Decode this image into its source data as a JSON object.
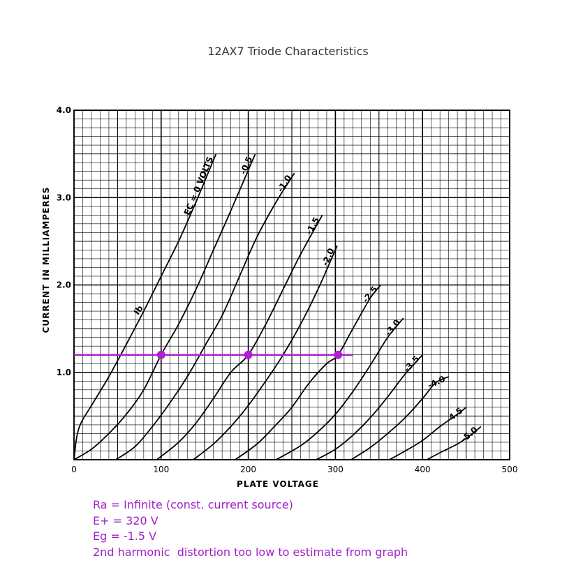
{
  "title": "12AX7 Triode Characteristics",
  "chart_data": {
    "type": "line",
    "title": "12AX7 Triode Characteristics",
    "xlabel": "PLATE VOLTAGE",
    "ylabel": "CURRENT IN MILLIAMPERES",
    "xlim": [
      0,
      500
    ],
    "ylim": [
      0,
      4.0
    ],
    "x_ticks": [
      "0",
      "100",
      "200",
      "300",
      "400",
      "500"
    ],
    "y_ticks": [
      "1.0",
      "2.0",
      "3.0",
      "4.0"
    ],
    "grid": true,
    "curve_axis_label": "Ib",
    "series": [
      {
        "name": "EC = 0 VOLTS",
        "label": "EC = 0 VOLTS",
        "points": [
          [
            0,
            0
          ],
          [
            3,
            0.25
          ],
          [
            8,
            0.42
          ],
          [
            20,
            0.62
          ],
          [
            40,
            0.95
          ],
          [
            60,
            1.32
          ],
          [
            80,
            1.7
          ],
          [
            100,
            2.1
          ],
          [
            120,
            2.5
          ],
          [
            140,
            2.95
          ],
          [
            163,
            3.5
          ]
        ]
      },
      {
        "name": "-0.5",
        "label": "-0.5",
        "points": [
          [
            0,
            0
          ],
          [
            20,
            0.12
          ],
          [
            40,
            0.3
          ],
          [
            60,
            0.52
          ],
          [
            80,
            0.8
          ],
          [
            100,
            1.2
          ],
          [
            120,
            1.55
          ],
          [
            140,
            1.95
          ],
          [
            160,
            2.4
          ],
          [
            180,
            2.85
          ],
          [
            208,
            3.5
          ]
        ]
      },
      {
        "name": "-1.0",
        "label": "-1.0",
        "points": [
          [
            48,
            0
          ],
          [
            70,
            0.15
          ],
          [
            90,
            0.38
          ],
          [
            110,
            0.65
          ],
          [
            130,
            0.95
          ],
          [
            150,
            1.3
          ],
          [
            170,
            1.65
          ],
          [
            190,
            2.1
          ],
          [
            210,
            2.55
          ],
          [
            232,
            2.95
          ],
          [
            253,
            3.28
          ]
        ]
      },
      {
        "name": "-1.5",
        "label": "-1.5",
        "points": [
          [
            95,
            0
          ],
          [
            120,
            0.2
          ],
          [
            140,
            0.42
          ],
          [
            160,
            0.7
          ],
          [
            180,
            1.0
          ],
          [
            200,
            1.2
          ],
          [
            220,
            1.55
          ],
          [
            240,
            1.95
          ],
          [
            260,
            2.35
          ],
          [
            285,
            2.8
          ]
        ]
      },
      {
        "name": "-2.0",
        "label": "-2.0",
        "points": [
          [
            137,
            0
          ],
          [
            160,
            0.18
          ],
          [
            180,
            0.38
          ],
          [
            200,
            0.62
          ],
          [
            220,
            0.9
          ],
          [
            240,
            1.2
          ],
          [
            260,
            1.55
          ],
          [
            280,
            1.95
          ],
          [
            302,
            2.45
          ]
        ]
      },
      {
        "name": "-2.5",
        "label": "-2.5",
        "points": [
          [
            185,
            0
          ],
          [
            210,
            0.18
          ],
          [
            230,
            0.38
          ],
          [
            250,
            0.6
          ],
          [
            270,
            0.88
          ],
          [
            290,
            1.1
          ],
          [
            303,
            1.2
          ],
          [
            320,
            1.5
          ],
          [
            340,
            1.85
          ],
          [
            352,
            2.0
          ]
        ]
      },
      {
        "name": "-3.0",
        "label": "-3.0",
        "points": [
          [
            232,
            0
          ],
          [
            260,
            0.16
          ],
          [
            280,
            0.32
          ],
          [
            300,
            0.52
          ],
          [
            320,
            0.78
          ],
          [
            340,
            1.08
          ],
          [
            360,
            1.4
          ],
          [
            378,
            1.62
          ]
        ]
      },
      {
        "name": "-3.5",
        "label": "-3.5",
        "points": [
          [
            278,
            0
          ],
          [
            300,
            0.12
          ],
          [
            320,
            0.28
          ],
          [
            340,
            0.48
          ],
          [
            360,
            0.72
          ],
          [
            380,
            0.98
          ],
          [
            400,
            1.2
          ]
        ]
      },
      {
        "name": "-4.0",
        "label": "-4.0",
        "points": [
          [
            318,
            0
          ],
          [
            340,
            0.14
          ],
          [
            360,
            0.3
          ],
          [
            380,
            0.48
          ],
          [
            400,
            0.7
          ],
          [
            415,
            0.88
          ],
          [
            430,
            0.95
          ]
        ]
      },
      {
        "name": "-4.5",
        "label": "-4.5",
        "points": [
          [
            362,
            0
          ],
          [
            380,
            0.1
          ],
          [
            400,
            0.22
          ],
          [
            420,
            0.38
          ],
          [
            440,
            0.52
          ],
          [
            450,
            0.6
          ]
        ]
      },
      {
        "name": "-5.0",
        "label": "-5.0",
        "points": [
          [
            405,
            0
          ],
          [
            420,
            0.08
          ],
          [
            440,
            0.18
          ],
          [
            455,
            0.28
          ],
          [
            467,
            0.38
          ]
        ]
      }
    ],
    "load_line": {
      "y": 1.2,
      "x_start": 0,
      "x_end": 320,
      "color": "#b020d0"
    },
    "operating_points": [
      [
        100,
        1.2
      ],
      [
        200,
        1.2
      ],
      [
        303,
        1.2
      ]
    ],
    "accent_color": "#b020d0"
  },
  "notes": [
    "Ra = Infinite (const. current source)",
    "E+ = 320 V",
    "Eg = -1.5 V",
    "2nd harmonic  distortion too low to estimate from graph"
  ]
}
